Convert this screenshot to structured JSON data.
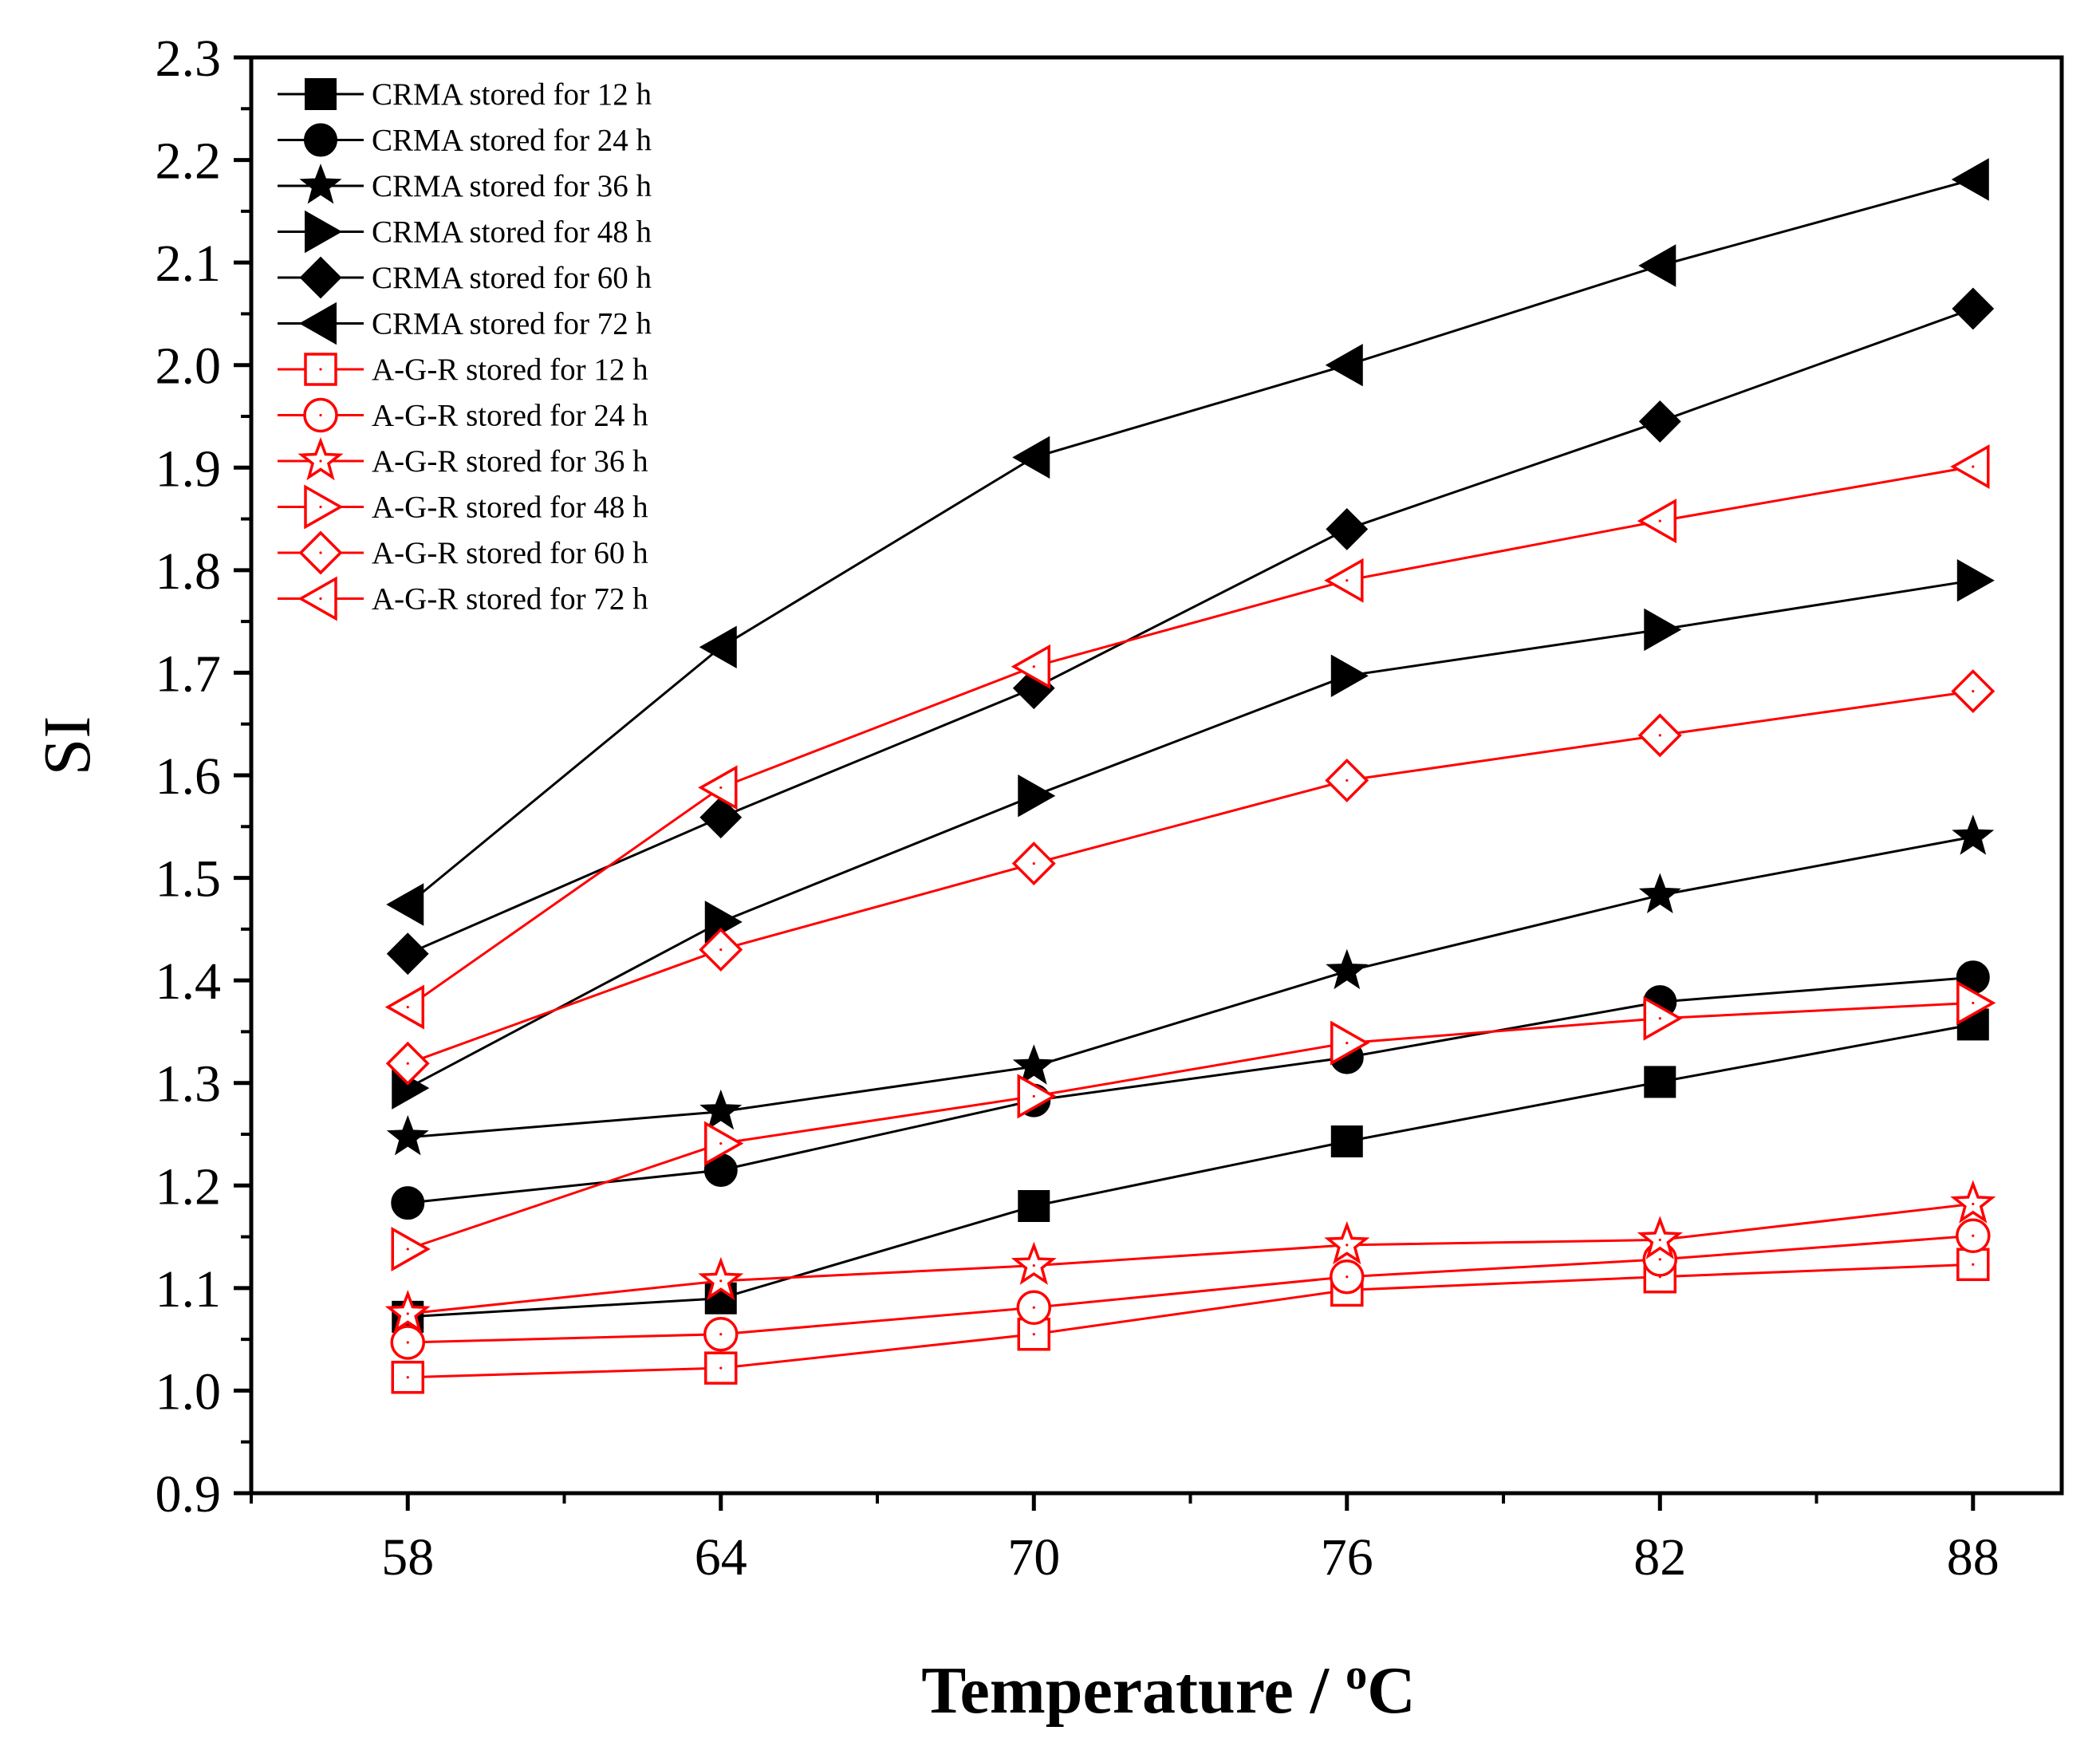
{
  "chart_data": {
    "type": "line",
    "title": "",
    "xlabel": "Temperature / ",
    "xlabel_sup": "o",
    "xlabel_unit": "C",
    "ylabel": "SI",
    "x": [
      58,
      64,
      70,
      76,
      82,
      88
    ],
    "x_tick_labels": [
      "58",
      "64",
      "70",
      "76",
      "82",
      "88"
    ],
    "xlim": [
      55,
      89.7
    ],
    "ylim": [
      0.9,
      2.3
    ],
    "y_tick_labels": [
      "0.9",
      "1.0",
      "1.1",
      "1.2",
      "1.3",
      "1.4",
      "1.5",
      "1.6",
      "1.7",
      "1.8",
      "1.9",
      "2.0",
      "2.1",
      "2.2",
      "2.3"
    ],
    "legend_position": "top-left",
    "grid": false,
    "series": [
      {
        "name": "CRMA stored for 12 h",
        "color": "#000000",
        "marker": "square",
        "filled": true,
        "values": [
          1.072,
          1.09,
          1.18,
          1.243,
          1.301,
          1.357
        ]
      },
      {
        "name": "CRMA stored for 24 h",
        "color": "#000000",
        "marker": "circle",
        "filled": true,
        "values": [
          1.183,
          1.215,
          1.283,
          1.325,
          1.379,
          1.403
        ]
      },
      {
        "name": "CRMA stored for 36 h",
        "color": "#000000",
        "marker": "star",
        "filled": true,
        "values": [
          1.247,
          1.272,
          1.316,
          1.409,
          1.483,
          1.54
        ]
      },
      {
        "name": "CRMA stored for 48 h",
        "color": "#000000",
        "marker": "triangle-right",
        "filled": true,
        "values": [
          1.295,
          1.457,
          1.58,
          1.697,
          1.742,
          1.79
        ]
      },
      {
        "name": "CRMA stored for 60 h",
        "color": "#000000",
        "marker": "diamond",
        "filled": true,
        "values": [
          1.426,
          1.559,
          1.685,
          1.84,
          1.945,
          2.055
        ]
      },
      {
        "name": "CRMA stored for 72 h",
        "color": "#000000",
        "marker": "triangle-left",
        "filled": true,
        "values": [
          1.474,
          1.725,
          1.91,
          2.0,
          2.097,
          2.181
        ]
      },
      {
        "name": "A-G-R stored for 12 h",
        "color": "#ff0000",
        "marker": "square",
        "filled": false,
        "values": [
          1.013,
          1.022,
          1.055,
          1.098,
          1.111,
          1.123
        ]
      },
      {
        "name": "A-G-R stored for 24 h",
        "color": "#ff0000",
        "marker": "circle",
        "filled": false,
        "values": [
          1.047,
          1.055,
          1.081,
          1.111,
          1.128,
          1.151
        ]
      },
      {
        "name": "A-G-R stored for 36 h",
        "color": "#ff0000",
        "marker": "star",
        "filled": false,
        "values": [
          1.075,
          1.107,
          1.122,
          1.142,
          1.147,
          1.182
        ]
      },
      {
        "name": "A-G-R stored for 48 h",
        "color": "#ff0000",
        "marker": "triangle-right",
        "filled": false,
        "values": [
          1.138,
          1.241,
          1.287,
          1.339,
          1.363,
          1.378
        ]
      },
      {
        "name": "A-G-R stored for 60 h",
        "color": "#ff0000",
        "marker": "diamond",
        "filled": false,
        "values": [
          1.319,
          1.43,
          1.514,
          1.595,
          1.639,
          1.682
        ]
      },
      {
        "name": "A-G-R stored for 72 h",
        "color": "#ff0000",
        "marker": "triangle-left",
        "filled": false,
        "values": [
          1.374,
          1.588,
          1.706,
          1.79,
          1.848,
          1.901
        ]
      }
    ]
  }
}
